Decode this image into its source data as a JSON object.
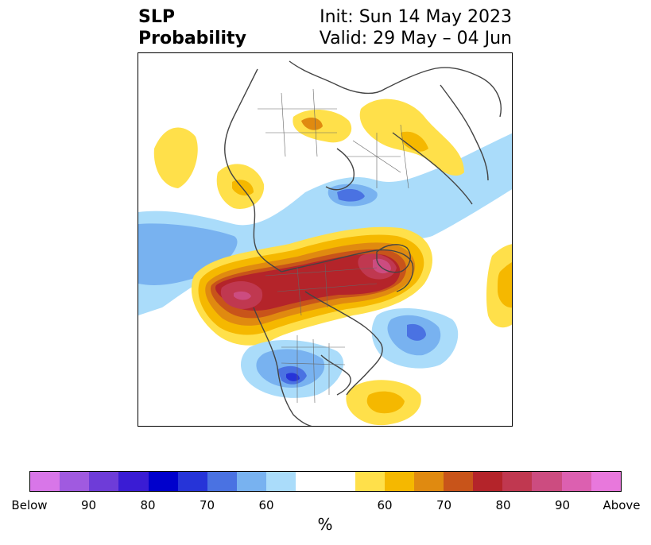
{
  "title": {
    "left_line1": "SLP",
    "left_line2": "Probability",
    "right_line1": "Init: Sun 14 May 2023",
    "right_line2": "Valid: 29 May – 04 Jun"
  },
  "colorbar": {
    "unit": "%",
    "colors": [
      "#d876e8",
      "#a05ae0",
      "#6e3cd8",
      "#3a1cd4",
      "#0000cc",
      "#2634d8",
      "#4a72e2",
      "#78b2f0",
      "#aadcfa",
      "#ffffff",
      "#ffffff",
      "#ffe04a",
      "#f5b800",
      "#e08a10",
      "#c8541a",
      "#b4242a",
      "#c03850",
      "#cc4c80",
      "#dc60b0",
      "#e878dc"
    ],
    "tick_labels": [
      "Below",
      "90",
      "80",
      "70",
      "60",
      "60",
      "70",
      "80",
      "90",
      "Above"
    ]
  },
  "map": {
    "regions": [
      {
        "name": "north-pacific-below-band",
        "category": "below-50-60",
        "color": "#aadcfa"
      },
      {
        "name": "north-pacific-below-core",
        "category": "below-60-70",
        "color": "#78b2f0"
      },
      {
        "name": "arctic-above-band",
        "category": "above-50-60",
        "color": "#ffe04a"
      },
      {
        "name": "arctic-above-core",
        "category": "above-70-80",
        "color": "#e08a10"
      },
      {
        "name": "greenland-canada-high",
        "category": "above-80-90",
        "color": "#b4242a"
      },
      {
        "name": "greenland-high-peak",
        "category": "above-90",
        "color": "#cc4c80"
      },
      {
        "name": "atlantic-low",
        "category": "below-70-80",
        "color": "#4a72e2"
      },
      {
        "name": "us-south-low",
        "category": "below-80",
        "color": "#2634d8"
      },
      {
        "name": "gulf-mexico-high",
        "category": "above-60-70",
        "color": "#f5b800"
      }
    ]
  }
}
